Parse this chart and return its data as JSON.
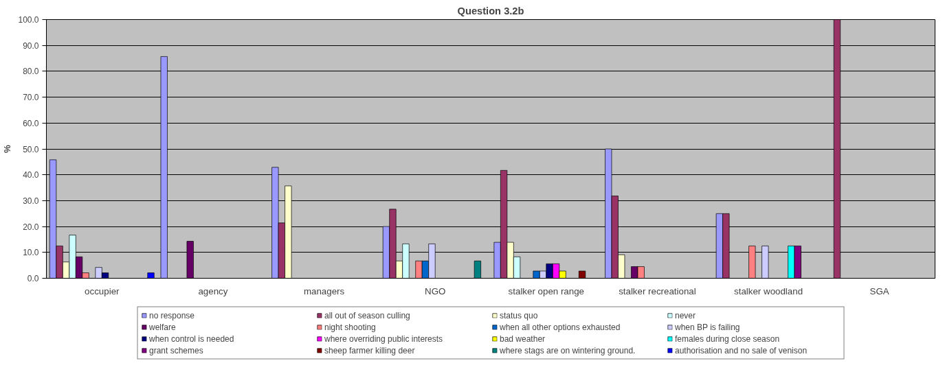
{
  "chart_data": {
    "type": "bar",
    "title": "Question 3.2b",
    "ylabel": "%",
    "categories": [
      "occupier",
      "agency",
      "managers",
      "NGO",
      "stalker open range",
      "stalker recreational",
      "stalker woodland",
      "SGA"
    ],
    "ylim": [
      0,
      100
    ],
    "yticks": [
      {
        "value": 0,
        "label": "0.0"
      },
      {
        "value": 10,
        "label": "10.0"
      },
      {
        "value": 20,
        "label": "20.0"
      },
      {
        "value": 30,
        "label": "30.0"
      },
      {
        "value": 40,
        "label": "40.0"
      },
      {
        "value": 50,
        "label": "50.0"
      },
      {
        "value": 60,
        "label": "60.0"
      },
      {
        "value": 70,
        "label": "70.0"
      },
      {
        "value": 80,
        "label": "80.0"
      },
      {
        "value": 90,
        "label": "90.0"
      },
      {
        "value": 100,
        "label": "100.0"
      }
    ],
    "grid": "y",
    "legend": "bottom",
    "series": [
      {
        "name": "no response",
        "color": "#9999ff",
        "values": [
          45.8,
          85.7,
          42.9,
          20.0,
          13.9,
          50.0,
          25.0,
          0
        ]
      },
      {
        "name": "all out of season culling",
        "color": "#993366",
        "values": [
          12.5,
          0,
          21.4,
          26.7,
          41.7,
          31.8,
          25.0,
          100.0
        ]
      },
      {
        "name": "status quo",
        "color": "#ffffcc",
        "values": [
          6.3,
          0,
          35.7,
          6.7,
          13.9,
          9.1,
          0,
          0
        ]
      },
      {
        "name": "never",
        "color": "#ccffff",
        "values": [
          16.7,
          0,
          0,
          13.3,
          8.3,
          0,
          0,
          0
        ]
      },
      {
        "name": "welfare",
        "color": "#660066",
        "values": [
          8.3,
          14.3,
          0,
          0,
          0,
          4.5,
          0,
          0
        ]
      },
      {
        "name": "night shooting",
        "color": "#ff8080",
        "values": [
          2.1,
          0,
          0,
          6.7,
          0,
          4.5,
          12.5,
          0
        ]
      },
      {
        "name": "when all other options exhausted",
        "color": "#0066cc",
        "values": [
          0,
          0,
          0,
          6.7,
          2.8,
          0,
          0,
          0
        ]
      },
      {
        "name": "when BP is failing",
        "color": "#ccccff",
        "values": [
          4.2,
          0,
          0,
          13.3,
          2.8,
          0,
          12.5,
          0
        ]
      },
      {
        "name": "when control is needed",
        "color": "#000080",
        "values": [
          2.1,
          0,
          0,
          0,
          5.6,
          0,
          0,
          0
        ]
      },
      {
        "name": "where overriding public interests",
        "color": "#ff00ff",
        "values": [
          0,
          0,
          0,
          0,
          5.6,
          0,
          0,
          0
        ]
      },
      {
        "name": "bad weather",
        "color": "#ffff00",
        "values": [
          0,
          0,
          0,
          0,
          2.8,
          0,
          0,
          0
        ]
      },
      {
        "name": "females during close season",
        "color": "#00ffff",
        "values": [
          0,
          0,
          0,
          0,
          0,
          0,
          12.5,
          0
        ]
      },
      {
        "name": "grant schemes",
        "color": "#800080",
        "values": [
          0,
          0,
          0,
          0,
          0,
          0,
          12.5,
          0
        ]
      },
      {
        "name": "sheep farmer killing deer",
        "color": "#800000",
        "values": [
          0,
          0,
          0,
          0,
          2.8,
          0,
          0,
          0
        ]
      },
      {
        "name": "where stags are on wintering ground.",
        "color": "#008080",
        "values": [
          0,
          0,
          0,
          6.7,
          0,
          0,
          0,
          0
        ]
      },
      {
        "name": "authorisation and no sale of venison",
        "color": "#0000ff",
        "values": [
          2.1,
          0,
          0,
          0,
          0,
          0,
          0,
          0
        ]
      }
    ]
  }
}
